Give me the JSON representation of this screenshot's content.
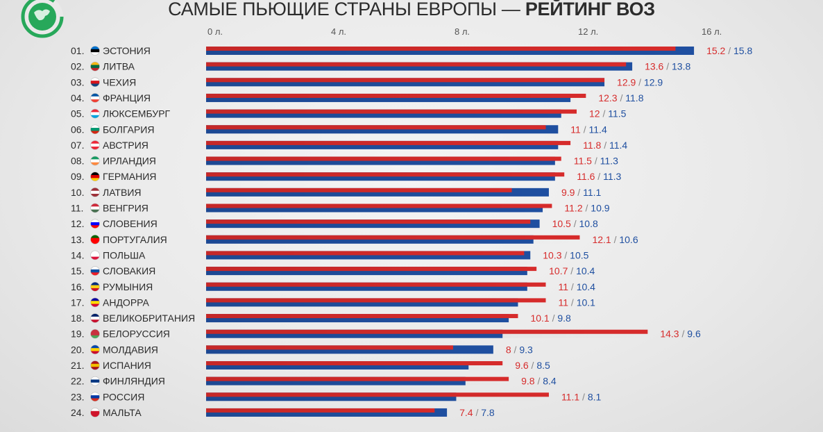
{
  "title": {
    "main": "САМЫЕ ПЬЮЩИЕ СТРАНЫ ЕВРОПЫ —",
    "bold": "РЕЙТИНГ ВОЗ"
  },
  "colors": {
    "red": "#d62b2b",
    "blue": "#1f4fa0",
    "logo": "#27a85a"
  },
  "logo_icon": "globe-logo-icon",
  "chart_data": {
    "type": "bar",
    "orientation": "horizontal",
    "xlim": [
      0,
      16
    ],
    "ticks": [
      {
        "value": 0,
        "label": "0 л."
      },
      {
        "value": 4,
        "label": "4 л."
      },
      {
        "value": 8,
        "label": "8 л."
      },
      {
        "value": 12,
        "label": "12 л."
      },
      {
        "value": 16,
        "label": "16 л."
      }
    ],
    "rows": [
      {
        "rank": "01.",
        "country": "ЭСТОНИЯ",
        "flag": [
          "#0072ce",
          "#000000",
          "#ffffff"
        ],
        "red": 15.2,
        "blue": 15.8
      },
      {
        "rank": "02.",
        "country": "ЛИТВА",
        "flag": [
          "#fdb913",
          "#006a44",
          "#c1272d"
        ],
        "red": 13.6,
        "blue": 13.8
      },
      {
        "rank": "03.",
        "country": "ЧЕХИЯ",
        "flag": [
          "#ffffff",
          "#d7141a",
          "#11457e"
        ],
        "red": 12.9,
        "blue": 12.9
      },
      {
        "rank": "04.",
        "country": "ФРАНЦИЯ",
        "flag": [
          "#0055a4",
          "#ffffff",
          "#ef4135"
        ],
        "red": 12.3,
        "blue": 11.8
      },
      {
        "rank": "05.",
        "country": "ЛЮКСЕМБУРГ",
        "flag": [
          "#ed2939",
          "#ffffff",
          "#00a1de"
        ],
        "red": 12,
        "blue": 11.5
      },
      {
        "rank": "06.",
        "country": "БОЛГАРИЯ",
        "flag": [
          "#ffffff",
          "#00966e",
          "#d62612"
        ],
        "red": 11,
        "blue": 11.4
      },
      {
        "rank": "07.",
        "country": "АВСТРИЯ",
        "flag": [
          "#ed2939",
          "#ffffff",
          "#ed2939"
        ],
        "red": 11.8,
        "blue": 11.4
      },
      {
        "rank": "08.",
        "country": "ИРЛАНДИЯ",
        "flag": [
          "#169b62",
          "#ffffff",
          "#ff883e"
        ],
        "red": 11.5,
        "blue": 11.3
      },
      {
        "rank": "09.",
        "country": "ГЕРМАНИЯ",
        "flag": [
          "#000000",
          "#dd0000",
          "#ffce00"
        ],
        "red": 11.6,
        "blue": 11.3
      },
      {
        "rank": "10.",
        "country": "ЛАТВИЯ",
        "flag": [
          "#9e3039",
          "#ffffff",
          "#9e3039"
        ],
        "red": 9.9,
        "blue": 11.1
      },
      {
        "rank": "11.",
        "country": "ВЕНГРИЯ",
        "flag": [
          "#ce2939",
          "#ffffff",
          "#477050"
        ],
        "red": 11.2,
        "blue": 10.9
      },
      {
        "rank": "12.",
        "country": "СЛОВЕНИЯ",
        "flag": [
          "#ffffff",
          "#0000ff",
          "#ff0000"
        ],
        "red": 10.5,
        "blue": 10.8
      },
      {
        "rank": "13.",
        "country": "ПОРТУГАЛИЯ",
        "flag": [
          "#006600",
          "#ff0000",
          "#ff0000"
        ],
        "red": 12.1,
        "blue": 10.6
      },
      {
        "rank": "14.",
        "country": "ПОЛЬША",
        "flag": [
          "#ffffff",
          "#ffffff",
          "#dc143c"
        ],
        "red": 10.3,
        "blue": 10.5
      },
      {
        "rank": "15.",
        "country": "СЛОВАКИЯ",
        "flag": [
          "#ffffff",
          "#0b4ea2",
          "#ee1c25"
        ],
        "red": 10.7,
        "blue": 10.4
      },
      {
        "rank": "16.",
        "country": "РУМЫНИЯ",
        "flag": [
          "#002b7f",
          "#fcd116",
          "#ce1126"
        ],
        "red": 11,
        "blue": 10.4
      },
      {
        "rank": "17.",
        "country": "АНДОРРА",
        "flag": [
          "#10069f",
          "#fedd00",
          "#d50032"
        ],
        "red": 11,
        "blue": 10.1
      },
      {
        "rank": "18.",
        "country": "ВЕЛИКОБРИТАНИЯ",
        "flag": [
          "#012169",
          "#ffffff",
          "#c8102e"
        ],
        "red": 10.1,
        "blue": 9.8
      },
      {
        "rank": "19.",
        "country": "БЕЛОРУССИЯ",
        "flag": [
          "#c8313e",
          "#c8313e",
          "#4aa657"
        ],
        "red": 14.3,
        "blue": 9.6
      },
      {
        "rank": "20.",
        "country": "МОЛДАВИЯ",
        "flag": [
          "#0046ae",
          "#ffd200",
          "#cc092f"
        ],
        "red": 8,
        "blue": 9.3
      },
      {
        "rank": "21.",
        "country": "ИСПАНИЯ",
        "flag": [
          "#aa151b",
          "#f1bf00",
          "#aa151b"
        ],
        "red": 9.6,
        "blue": 8.5
      },
      {
        "rank": "22.",
        "country": "ФИНЛЯНДИЯ",
        "flag": [
          "#ffffff",
          "#003580",
          "#ffffff"
        ],
        "red": 9.8,
        "blue": 8.4
      },
      {
        "rank": "23.",
        "country": "РОССИЯ",
        "flag": [
          "#ffffff",
          "#0039a6",
          "#d52b1e"
        ],
        "red": 11.1,
        "blue": 8.1
      },
      {
        "rank": "24.",
        "country": "МАЛЬТА",
        "flag": [
          "#ffffff",
          "#cf142b",
          "#cf142b"
        ],
        "red": 7.4,
        "blue": 7.8
      }
    ]
  }
}
